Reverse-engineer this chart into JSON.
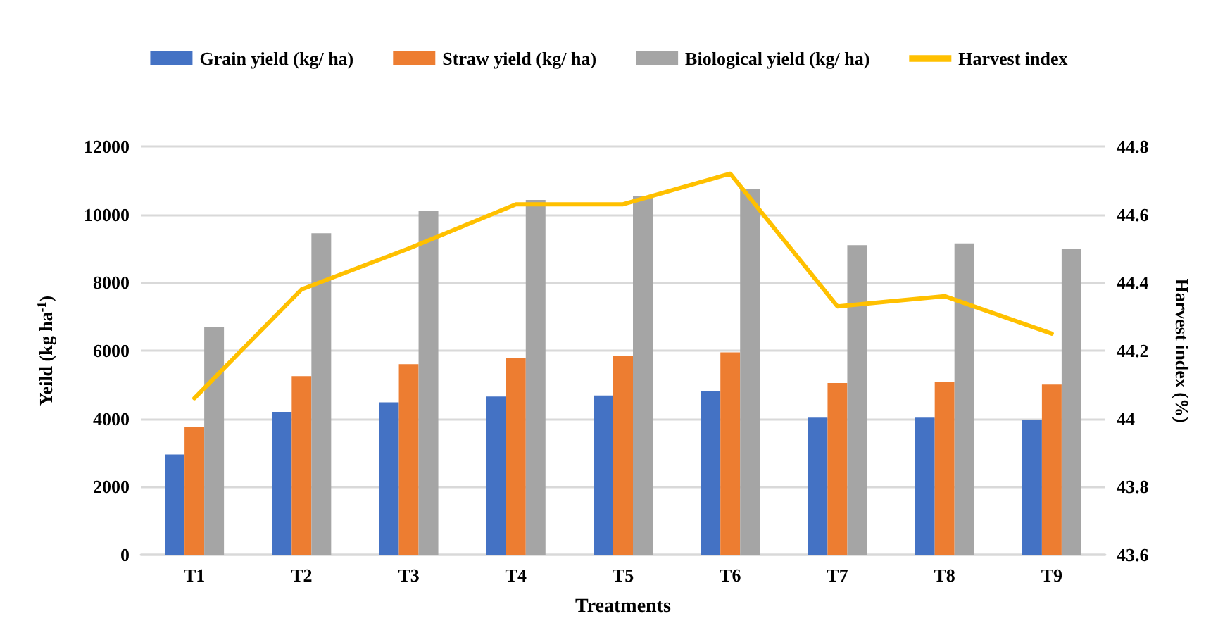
{
  "chart_data": {
    "type": "bar",
    "xlabel": "Treatments",
    "ylabel": "Yeild (kg ha$^{-1}$)",
    "y2label": "Harvest index (%)",
    "categories": [
      "T1",
      "T2",
      "T3",
      "T4",
      "T5",
      "T6",
      "T7",
      "T8",
      "T9"
    ],
    "series": [
      {
        "name": "Grain yield (kg/ ha)",
        "color": "#4472c4",
        "values": [
          2950,
          4200,
          4480,
          4650,
          4680,
          4800,
          4030,
          4030,
          3970
        ]
      },
      {
        "name": "Straw yield (kg/ ha)",
        "color": "#ed7d31",
        "values": [
          3750,
          5250,
          5600,
          5780,
          5850,
          5950,
          5050,
          5080,
          5000
        ]
      },
      {
        "name": "Biological yield (kg/ ha)",
        "color": "#a5a5a5",
        "values": [
          6700,
          9450,
          10100,
          10430,
          10550,
          10750,
          9100,
          9150,
          9000
        ]
      },
      {
        "name": "Harvest index",
        "type": "line",
        "axis": "y2",
        "color": "#ffc000",
        "values": [
          44.06,
          44.38,
          44.5,
          44.63,
          44.63,
          44.72,
          44.33,
          44.36,
          44.25
        ]
      }
    ],
    "ylim": [
      0,
      12000
    ],
    "yticks": [
      0,
      2000,
      4000,
      6000,
      8000,
      10000,
      12000
    ],
    "y2lim": [
      43.6,
      44.8
    ],
    "y2ticks": [
      43.6,
      43.8,
      44,
      44.2,
      44.4,
      44.6,
      44.8
    ],
    "grid": "y",
    "legend": "top",
    "marker": "none"
  }
}
